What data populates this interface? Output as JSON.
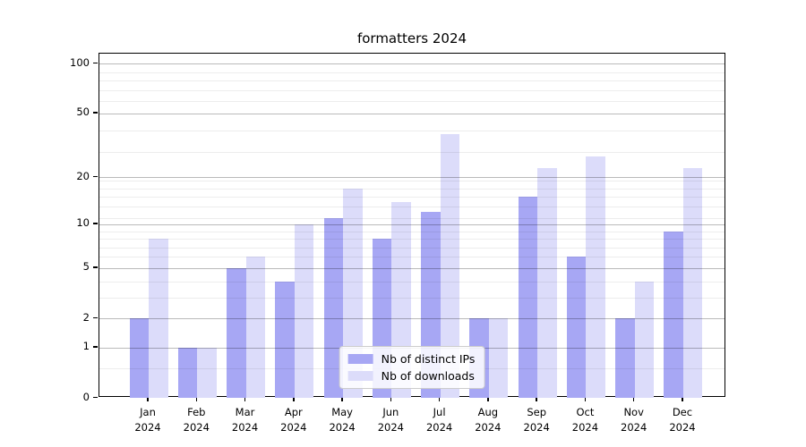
{
  "chart_data": {
    "type": "bar",
    "title": "formatters 2024",
    "categories": [
      "Jan",
      "Feb",
      "Mar",
      "Apr",
      "May",
      "Jun",
      "Jul",
      "Aug",
      "Sep",
      "Oct",
      "Nov",
      "Dec"
    ],
    "x_year_suffix": "2024",
    "series": [
      {
        "name": "Nb of distinct IPs",
        "color": "#a7a7f4",
        "values": [
          2,
          1,
          5,
          4,
          11,
          8,
          12,
          2,
          15,
          6,
          2,
          9
        ]
      },
      {
        "name": "Nb of downloads",
        "color": "#dcdcfa",
        "values": [
          8,
          1,
          6,
          10,
          17,
          14,
          37,
          2,
          23,
          27,
          4,
          23
        ]
      }
    ],
    "xlabel": "",
    "ylabel": "",
    "y_axis": {
      "scale": "log1p",
      "ticks": [
        0,
        1,
        2,
        5,
        10,
        20,
        50,
        100
      ],
      "minor_gridlines": [
        0.5,
        3,
        4,
        6,
        7,
        8,
        9,
        11,
        13,
        15,
        17,
        19,
        29,
        39,
        59,
        69,
        79,
        89
      ],
      "ylim": [
        0,
        115
      ]
    },
    "grid": true,
    "legend_position": "lower center"
  }
}
